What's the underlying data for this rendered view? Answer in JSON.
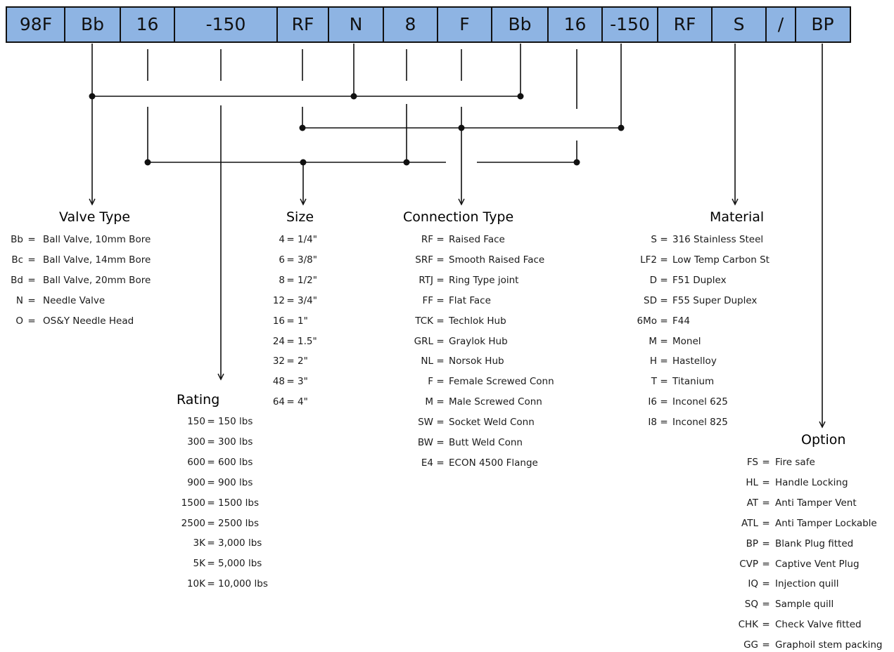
{
  "code_segments": [
    "98F",
    "Bb",
    "16",
    "-150",
    "RF",
    "N",
    "8",
    "F",
    "Bb",
    "16",
    "-150",
    "RF",
    "S",
    "/",
    "BP"
  ],
  "sections": {
    "valve_type": {
      "title": "Valve Type",
      "entries": [
        {
          "code": "Bb",
          "sep": "=",
          "desc": "Ball Valve, 10mm Bore"
        },
        {
          "code": "Bc",
          "sep": "=",
          "desc": "Ball Valve, 14mm Bore"
        },
        {
          "code": "Bd",
          "sep": "=",
          "desc": "Ball Valve, 20mm Bore"
        },
        {
          "code": "N",
          "sep": "=",
          "desc": "Needle Valve"
        },
        {
          "code": "O",
          "sep": "=",
          "desc": "OS&Y Needle Head"
        }
      ]
    },
    "rating": {
      "title": "Rating",
      "entries": [
        {
          "code": "150",
          "sep": "=",
          "desc": "150 lbs"
        },
        {
          "code": "300",
          "sep": "=",
          "desc": "300 lbs"
        },
        {
          "code": "600",
          "sep": "=",
          "desc": "600 lbs"
        },
        {
          "code": "900",
          "sep": "=",
          "desc": "900 lbs"
        },
        {
          "code": "1500",
          "sep": "=",
          "desc": "1500 lbs"
        },
        {
          "code": "2500",
          "sep": "=",
          "desc": "2500 lbs"
        },
        {
          "code": "3K",
          "sep": "=",
          "desc": "3,000 lbs"
        },
        {
          "code": "5K",
          "sep": "=",
          "desc": "5,000 lbs"
        },
        {
          "code": "10K",
          "sep": "=",
          "desc": "10,000 lbs"
        }
      ]
    },
    "size": {
      "title": "Size",
      "entries": [
        {
          "code": "4",
          "sep": "=",
          "desc": "1/4\""
        },
        {
          "code": "6",
          "sep": "=",
          "desc": "3/8\""
        },
        {
          "code": "8",
          "sep": "=",
          "desc": "1/2\""
        },
        {
          "code": "12",
          "sep": "=",
          "desc": "3/4\""
        },
        {
          "code": "16",
          "sep": "=",
          "desc": "1\""
        },
        {
          "code": "24",
          "sep": "=",
          "desc": "1.5\""
        },
        {
          "code": "32",
          "sep": "=",
          "desc": "2\""
        },
        {
          "code": "48",
          "sep": "=",
          "desc": "3\""
        },
        {
          "code": "64",
          "sep": "=",
          "desc": "4\""
        }
      ]
    },
    "connection_type": {
      "title": "Connection Type",
      "entries": [
        {
          "code": "RF",
          "sep": "=",
          "desc": "Raised Face"
        },
        {
          "code": "SRF",
          "sep": "=",
          "desc": "Smooth Raised Face"
        },
        {
          "code": "RTJ",
          "sep": "=",
          "desc": "Ring Type joint"
        },
        {
          "code": "FF",
          "sep": "=",
          "desc": "Flat Face"
        },
        {
          "code": "TCK",
          "sep": "=",
          "desc": "Techlok Hub"
        },
        {
          "code": "GRL",
          "sep": "=",
          "desc": "Graylok Hub"
        },
        {
          "code": "NL",
          "sep": "=",
          "desc": "Norsok Hub"
        },
        {
          "code": "F",
          "sep": "=",
          "desc": "Female Screwed Conn"
        },
        {
          "code": "M",
          "sep": "=",
          "desc": "Male Screwed Conn"
        },
        {
          "code": "SW",
          "sep": "=",
          "desc": "Socket Weld Conn"
        },
        {
          "code": "BW",
          "sep": "=",
          "desc": "Butt Weld Conn"
        },
        {
          "code": "E4",
          "sep": "=",
          "desc": "ECON 4500 Flange"
        }
      ]
    },
    "material": {
      "title": "Material",
      "entries": [
        {
          "code": "S",
          "sep": "=",
          "desc": "316 Stainless Steel"
        },
        {
          "code": "LF2",
          "sep": "=",
          "desc": "Low Temp Carbon St"
        },
        {
          "code": "D",
          "sep": "=",
          "desc": "F51 Duplex"
        },
        {
          "code": "SD",
          "sep": "=",
          "desc": "F55 Super Duplex"
        },
        {
          "code": "6Mo",
          "sep": "=",
          "desc": "F44"
        },
        {
          "code": "M",
          "sep": "=",
          "desc": "Monel"
        },
        {
          "code": "H",
          "sep": "=",
          "desc": "Hastelloy"
        },
        {
          "code": "T",
          "sep": "=",
          "desc": "Titanium"
        },
        {
          "code": "I6",
          "sep": "=",
          "desc": "Inconel 625"
        },
        {
          "code": "I8",
          "sep": "=",
          "desc": "Inconel 825"
        }
      ]
    },
    "option": {
      "title": "Option",
      "entries": [
        {
          "code": "FS",
          "sep": "=",
          "desc": "Fire safe"
        },
        {
          "code": "HL",
          "sep": "=",
          "desc": "Handle Locking"
        },
        {
          "code": "AT",
          "sep": "=",
          "desc": "Anti Tamper Vent"
        },
        {
          "code": "ATL",
          "sep": "=",
          "desc": "Anti Tamper Lockable"
        },
        {
          "code": "BP",
          "sep": "=",
          "desc": "Blank Plug fitted"
        },
        {
          "code": "CVP",
          "sep": "=",
          "desc": "Captive Vent Plug"
        },
        {
          "code": "IQ",
          "sep": "=",
          "desc": "Injection quill"
        },
        {
          "code": "SQ",
          "sep": "=",
          "desc": "Sample quill"
        },
        {
          "code": "CHK",
          "sep": "=",
          "desc": "Check Valve fitted"
        },
        {
          "code": "GG",
          "sep": "=",
          "desc": "Graphoil stem packing"
        }
      ]
    }
  },
  "colors": {
    "code_bar_fill": "#8eb4e3",
    "line": "#111111"
  }
}
